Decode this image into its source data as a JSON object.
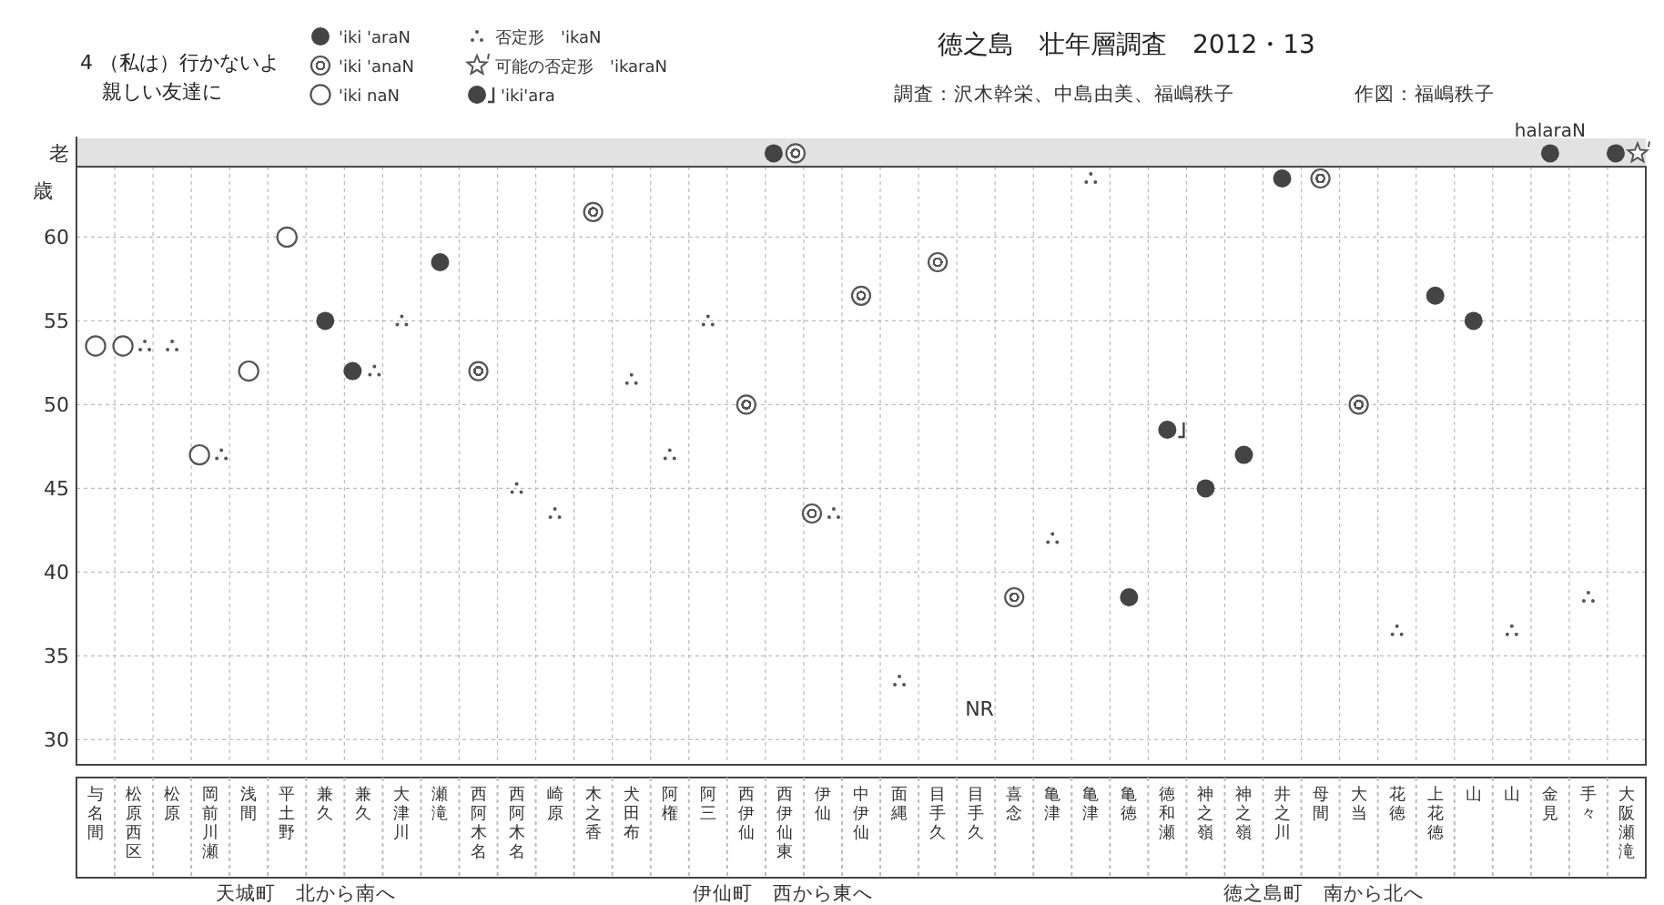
{
  "chart_data": {
    "type": "scatter",
    "title": "徳之島　壮年層調査　2012・13",
    "subtitle": "4 （私は）行かないよ親しい友達に",
    "ylabel": "歳",
    "categories": [
      "与名間",
      "松原西区",
      "松原",
      "岡前川瀬",
      "浅間",
      "平土野",
      "兼久",
      "兼久",
      "大津川",
      "瀬滝",
      "西阿木名",
      "西阿木名",
      "崎原",
      "木之香",
      "犬田布",
      "阿権",
      "阿三",
      "西伊仙",
      "西伊仙東",
      "伊仙",
      "中伊仙",
      "面縄",
      "目手久",
      "目手久",
      "喜念",
      "亀津",
      "亀津",
      "亀徳",
      "徳和瀬",
      "神之嶺",
      "神之嶺",
      "井之川",
      "母間",
      "大当",
      "花徳",
      "上花徳",
      "山",
      "山",
      "金見",
      "手々",
      "大阪瀬滝"
    ],
    "series": [
      {
        "name": "'iki 'araN",
        "color": "#444444",
        "marker": "circle",
        "values": [
          null,
          null,
          null,
          null,
          null,
          null,
          55,
          52,
          null,
          58.5,
          null,
          null,
          null,
          null,
          null,
          null,
          null,
          null,
          65,
          null,
          null,
          null,
          null,
          null,
          null,
          null,
          null,
          38.5,
          null,
          45,
          47,
          63.5,
          null,
          null,
          null,
          56.5,
          55,
          null,
          65,
          null,
          65
        ]
      },
      {
        "name": "'iki 'anaN",
        "color": "#555555",
        "marker": "circle",
        "values": [
          null,
          null,
          null,
          null,
          null,
          null,
          null,
          null,
          null,
          null,
          52,
          null,
          null,
          61.5,
          null,
          null,
          null,
          50,
          65,
          43.5,
          56.5,
          null,
          58.5,
          null,
          38.5,
          null,
          null,
          null,
          null,
          null,
          null,
          null,
          63.5,
          50,
          null,
          null,
          null,
          null,
          null,
          null,
          null
        ]
      },
      {
        "name": "'iki naN",
        "color": "#555555",
        "marker": "circle",
        "values": [
          53.5,
          53.5,
          null,
          47,
          52,
          60,
          null,
          null,
          null,
          null,
          null,
          null,
          null,
          null,
          null,
          null,
          null,
          null,
          null,
          null,
          null,
          null,
          null,
          null,
          null,
          null,
          null,
          null,
          null,
          null,
          null,
          null,
          null,
          null,
          null,
          null,
          null,
          null,
          null,
          null,
          null
        ]
      },
      {
        "name": "否定形　'ikaN",
        "color": "#555555",
        "marker": "triangle",
        "values": [
          null,
          53.5,
          53.5,
          47,
          null,
          null,
          null,
          52,
          55,
          null,
          null,
          45,
          43.5,
          null,
          51.5,
          47,
          55,
          null,
          null,
          43.5,
          null,
          33.5,
          null,
          null,
          null,
          42,
          63.5,
          null,
          null,
          null,
          null,
          null,
          null,
          null,
          36.5,
          null,
          null,
          36.5,
          null,
          38.5,
          null
        ]
      },
      {
        "name": "可能の否定形　'ikaraN",
        "color": "#555555",
        "marker": "star",
        "values": [
          null,
          null,
          null,
          null,
          null,
          null,
          null,
          null,
          null,
          null,
          null,
          null,
          null,
          null,
          null,
          null,
          null,
          null,
          null,
          null,
          null,
          null,
          null,
          null,
          null,
          null,
          null,
          null,
          null,
          null,
          null,
          null,
          null,
          null,
          null,
          null,
          null,
          null,
          null,
          null,
          65
        ]
      },
      {
        "name": "'iki'ara",
        "color": "#444444",
        "marker": "circle",
        "values": [
          null,
          null,
          null,
          null,
          null,
          null,
          null,
          null,
          null,
          null,
          null,
          null,
          null,
          null,
          null,
          null,
          null,
          null,
          null,
          null,
          null,
          null,
          null,
          null,
          null,
          null,
          null,
          null,
          48.5,
          null,
          null,
          null,
          null,
          null,
          null,
          null,
          null,
          null,
          null,
          null,
          null
        ]
      }
    ],
    "ylim": [
      28.5,
      66
    ],
    "yticks": [
      30,
      35,
      40,
      45,
      50,
      55,
      60,
      {
        "value": 65,
        "label": "老"
      }
    ],
    "bands": [
      {
        "axis": "y",
        "from": 64.2,
        "to": 65.9,
        "color": "#e2e2e2"
      }
    ],
    "grid": true,
    "legend": "top",
    "annotations": [
      "調査：沢木幹栄、中島由美、福嶋秩子",
      "作図：福嶋秩子",
      "天城町　北から南へ",
      "伊仙町　西から東へ",
      "徳之島町　南から北へ",
      "NR",
      {
        "text": "halaraN",
        "x": "金見",
        "y": 65
      }
    ]
  }
}
